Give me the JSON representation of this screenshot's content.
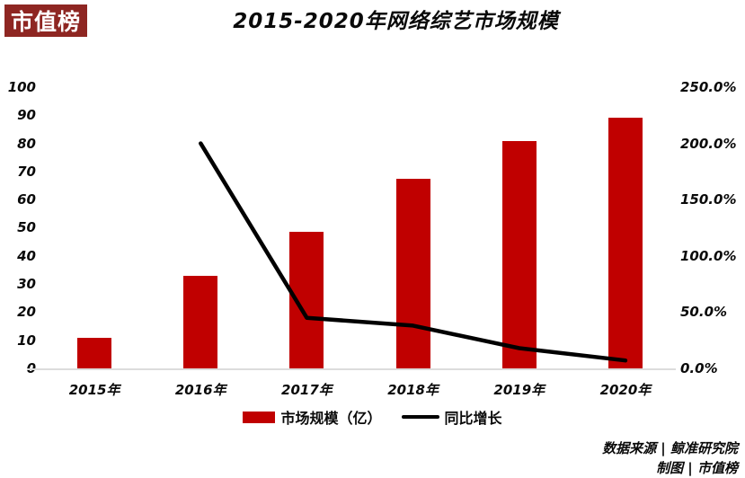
{
  "logo": {
    "text": "市值榜",
    "bg_color": "#8E2622",
    "text_color": "#ffffff"
  },
  "title": "2015-2020年网络综艺市场规模",
  "source": {
    "line1": "数据来源 | 鲸准研究院",
    "line2": "制图 | 市值榜"
  },
  "legend": [
    {
      "type": "bar",
      "label": "市场规模（亿）",
      "color": "#C00000"
    },
    {
      "type": "line",
      "label": "同比增长",
      "color": "#000000"
    }
  ],
  "chart_data": {
    "type": "bar+line",
    "title": "2015-2020年网络综艺市场规模",
    "categories": [
      "2015年",
      "2016年",
      "2017年",
      "2018年",
      "2019年",
      "2020年"
    ],
    "series": [
      {
        "name": "市场规模（亿）",
        "type": "bar",
        "axis": "left",
        "color": "#C00000",
        "values": [
          11,
          33,
          48.5,
          67.5,
          81,
          89
        ]
      },
      {
        "name": "同比增长",
        "type": "line",
        "axis": "right",
        "color": "#000000",
        "values_pct": [
          null,
          200,
          45,
          38,
          18,
          7
        ]
      }
    ],
    "y_left": {
      "min": 0,
      "max": 100,
      "ticks": [
        "100",
        "90",
        "80",
        "70",
        "60",
        "50",
        "40",
        "30",
        "20",
        "10",
        "0"
      ]
    },
    "y_right": {
      "min": 0,
      "max": 250,
      "ticks": [
        "250.0%",
        "200.0%",
        "150.0%",
        "100.0%",
        "50.0%",
        "0.0%"
      ]
    },
    "grid": false,
    "legend_position": "bottom",
    "bar_color": "#C00000",
    "line_color": "#000000",
    "axis_line_color": "#dcdcdc"
  }
}
